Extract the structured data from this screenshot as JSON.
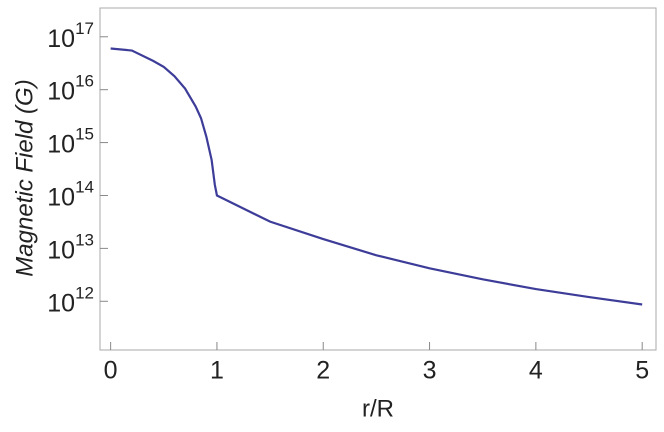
{
  "chart_data": {
    "type": "line",
    "x_label": "r/R",
    "y_label": "Magnetic Field (G)",
    "x": [
      0,
      0.2,
      0.4,
      0.5,
      0.6,
      0.7,
      0.8,
      0.85,
      0.9,
      0.95,
      0.98,
      1.0,
      1.5,
      2,
      2.5,
      3,
      3.5,
      4,
      4.5,
      5
    ],
    "series": [
      {
        "color": "#3d3d99",
        "values": [
          6e+16,
          5.5e+16,
          3.5e+16,
          2.7e+16,
          1.8e+16,
          1.05e+16,
          4800000000000000.0,
          2900000000000000.0,
          1300000000000000.0,
          470000000000000.0,
          160000000000000.0,
          100000000000000.0,
          32000000000000.0,
          15000000000000.0,
          7400000000000.0,
          4200000000000.0,
          2600000000000.0,
          1700000000000.0,
          1200000000000.0,
          870000000000.0
        ]
      }
    ],
    "xlim": [
      -0.1,
      5.13
    ],
    "xticks": [
      0,
      1,
      2,
      3,
      4,
      5
    ],
    "ylim": [
      120000000000.0,
      3.5e+17
    ],
    "log_y": true,
    "yticks": [
      {
        "value": 1000000000000.0,
        "label": "10^12"
      },
      {
        "value": 10000000000000.0,
        "label": "10^13"
      },
      {
        "value": 100000000000000.0,
        "label": "10^14"
      },
      {
        "value": 1000000000000000.0,
        "label": "10^15"
      },
      {
        "value": 1e+16,
        "label": "10^16"
      },
      {
        "value": 1e+17,
        "label": "10^17"
      }
    ]
  }
}
